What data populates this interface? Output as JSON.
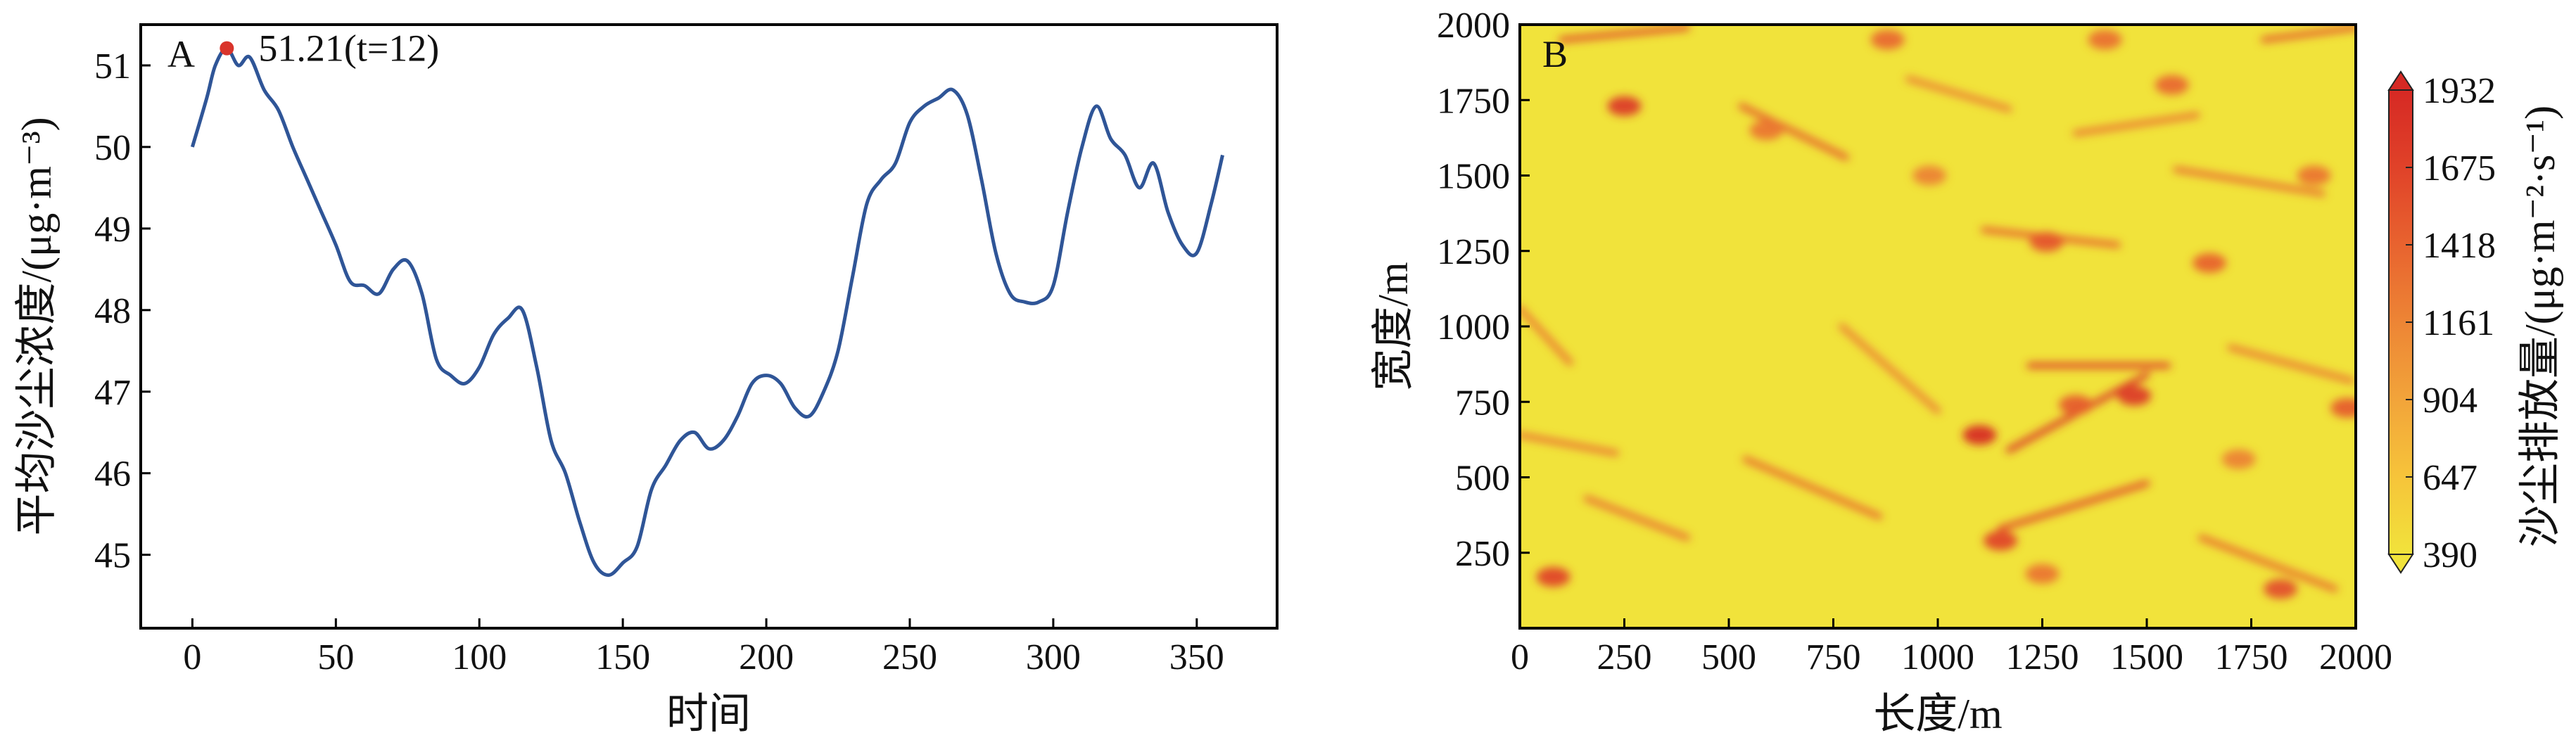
{
  "chart_data": [
    {
      "panel_label": "A",
      "type": "line",
      "xlabel": "时间",
      "ylabel": "平均沙尘浓度/(μg·m⁻³)",
      "xlim": [
        -18,
        378
      ],
      "ylim": [
        44.1,
        51.5
      ],
      "xticks": [
        "0",
        "50",
        "100",
        "150",
        "200",
        "250",
        "300",
        "350"
      ],
      "yticks": [
        "45",
        "46",
        "47",
        "48",
        "49",
        "50",
        "51"
      ],
      "line_color": "#2f5597",
      "annotation": {
        "text": "51.21(t=12)",
        "x": 12,
        "y": 51.21,
        "marker_color": "#d9342b"
      },
      "series": [
        {
          "x": [
            0,
            5,
            8,
            12,
            16,
            20,
            25,
            30,
            35,
            40,
            45,
            50,
            55,
            60,
            65,
            70,
            75,
            80,
            85,
            90,
            95,
            100,
            105,
            110,
            115,
            120,
            125,
            130,
            135,
            140,
            145,
            150,
            155,
            160,
            165,
            170,
            175,
            180,
            185,
            190,
            195,
            200,
            205,
            210,
            215,
            220,
            225,
            230,
            235,
            240,
            245,
            250,
            255,
            260,
            265,
            270,
            275,
            280,
            285,
            290,
            295,
            300,
            305,
            310,
            315,
            320,
            325,
            330,
            335,
            340,
            345,
            350,
            355,
            359
          ],
          "y": [
            50.0,
            50.6,
            51.0,
            51.21,
            51.0,
            51.1,
            50.7,
            50.45,
            50.0,
            49.6,
            49.2,
            48.8,
            48.35,
            48.3,
            48.2,
            48.5,
            48.6,
            48.2,
            47.4,
            47.2,
            47.1,
            47.3,
            47.7,
            47.9,
            48.0,
            47.3,
            46.4,
            46.0,
            45.4,
            44.9,
            44.75,
            44.9,
            45.1,
            45.8,
            46.1,
            46.4,
            46.5,
            46.3,
            46.4,
            46.7,
            47.1,
            47.2,
            47.1,
            46.8,
            46.7,
            47.0,
            47.5,
            48.4,
            49.3,
            49.6,
            49.8,
            50.3,
            50.5,
            50.6,
            50.7,
            50.4,
            49.6,
            48.7,
            48.2,
            48.1,
            48.1,
            48.3,
            49.2,
            50.0,
            50.5,
            50.1,
            49.9,
            49.5,
            49.8,
            49.2,
            48.8,
            48.7,
            49.3,
            49.9
          ]
        }
      ]
    },
    {
      "panel_label": "B",
      "type": "heatmap",
      "xlabel": "长度/m",
      "ylabel": "宽度/m",
      "xlim": [
        0,
        2000
      ],
      "ylim": [
        0,
        2000
      ],
      "xticks": [
        "0",
        "250",
        "500",
        "750",
        "1000",
        "1250",
        "1500",
        "1750",
        "2000"
      ],
      "yticks": [
        "250",
        "500",
        "750",
        "1000",
        "1250",
        "1500",
        "1750",
        "2000"
      ],
      "colorbar": {
        "label": "沙尘排放量/(μg·m⁻²·s⁻¹)",
        "ticks": [
          "390",
          "647",
          "904",
          "1161",
          "1418",
          "1675",
          "1932"
        ],
        "min": 390,
        "max": 1932,
        "colors": [
          "#f1e33b",
          "#f6c43a",
          "#f2a43a",
          "#ed8535",
          "#e8632f",
          "#e04229",
          "#d62924"
        ]
      },
      "background_value": 390,
      "hotspots": [
        {
          "x": 250,
          "y": 1730,
          "v": 1800
        },
        {
          "x": 1100,
          "y": 640,
          "v": 1932
        },
        {
          "x": 1470,
          "y": 770,
          "v": 1800
        },
        {
          "x": 1150,
          "y": 290,
          "v": 1700
        },
        {
          "x": 1330,
          "y": 740,
          "v": 1500
        },
        {
          "x": 1560,
          "y": 1800,
          "v": 1400
        },
        {
          "x": 1900,
          "y": 1500,
          "v": 1300
        },
        {
          "x": 1260,
          "y": 1280,
          "v": 1550
        },
        {
          "x": 1820,
          "y": 130,
          "v": 1600
        },
        {
          "x": 80,
          "y": 170,
          "v": 1700
        },
        {
          "x": 590,
          "y": 1650,
          "v": 1300
        },
        {
          "x": 980,
          "y": 1500,
          "v": 1200
        },
        {
          "x": 1650,
          "y": 1210,
          "v": 1450
        },
        {
          "x": 1980,
          "y": 730,
          "v": 1500
        },
        {
          "x": 880,
          "y": 1950,
          "v": 1400
        },
        {
          "x": 1250,
          "y": 180,
          "v": 1300
        },
        {
          "x": 1720,
          "y": 560,
          "v": 1200
        },
        {
          "x": 1400,
          "y": 1950,
          "v": 1350
        }
      ],
      "streaks": [
        {
          "x1": 1170,
          "y1": 590,
          "x2": 1500,
          "y2": 840,
          "v": 1800
        },
        {
          "x1": 1220,
          "y1": 870,
          "x2": 1550,
          "y2": 870,
          "v": 1700
        },
        {
          "x1": 1150,
          "y1": 330,
          "x2": 1500,
          "y2": 480,
          "v": 1650
        },
        {
          "x1": 100,
          "y1": 1950,
          "x2": 400,
          "y2": 1990,
          "v": 1600
        },
        {
          "x1": 530,
          "y1": 1730,
          "x2": 780,
          "y2": 1560,
          "v": 1500
        },
        {
          "x1": 1110,
          "y1": 1320,
          "x2": 1430,
          "y2": 1270,
          "v": 1450
        },
        {
          "x1": 1570,
          "y1": 1520,
          "x2": 1920,
          "y2": 1440,
          "v": 1350
        },
        {
          "x1": 540,
          "y1": 560,
          "x2": 860,
          "y2": 370,
          "v": 1400
        },
        {
          "x1": 0,
          "y1": 1060,
          "x2": 120,
          "y2": 880,
          "v": 1300
        },
        {
          "x1": 1630,
          "y1": 300,
          "x2": 1950,
          "y2": 130,
          "v": 1400
        },
        {
          "x1": 1780,
          "y1": 1950,
          "x2": 2000,
          "y2": 1990,
          "v": 1500
        },
        {
          "x1": 160,
          "y1": 430,
          "x2": 400,
          "y2": 300,
          "v": 1350
        },
        {
          "x1": 1700,
          "y1": 930,
          "x2": 1990,
          "y2": 820,
          "v": 1300
        },
        {
          "x1": 770,
          "y1": 1000,
          "x2": 1000,
          "y2": 720,
          "v": 1250
        },
        {
          "x1": 930,
          "y1": 1820,
          "x2": 1170,
          "y2": 1720,
          "v": 1250
        },
        {
          "x1": 0,
          "y1": 640,
          "x2": 230,
          "y2": 580,
          "v": 1300
        },
        {
          "x1": 1330,
          "y1": 1640,
          "x2": 1620,
          "y2": 1700,
          "v": 1300
        }
      ]
    }
  ]
}
